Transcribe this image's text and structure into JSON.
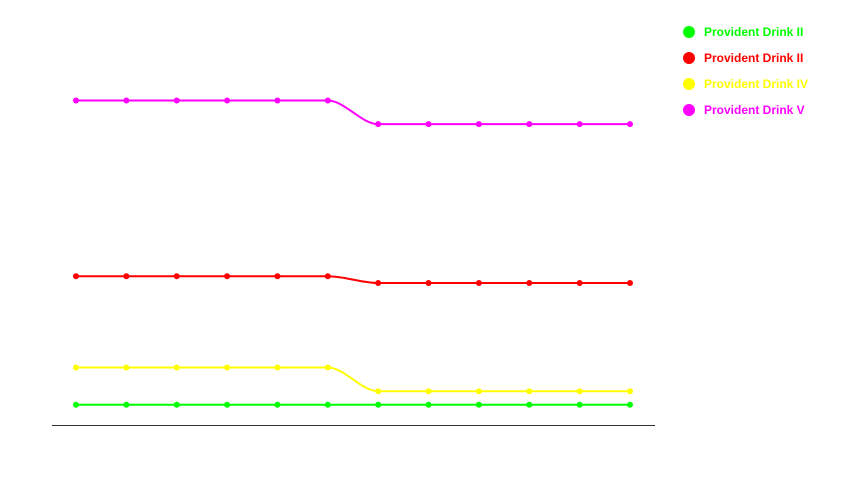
{
  "chart_data": {
    "type": "line",
    "title": "",
    "xlabel": "",
    "ylabel": "",
    "x": [
      1,
      2,
      3,
      4,
      5,
      6,
      7,
      8,
      9,
      10,
      11,
      12
    ],
    "ylim": [
      0,
      100
    ],
    "grid": false,
    "legend_position": "top-right",
    "series": [
      {
        "name": "Provident Drink II",
        "color": "#00ff00",
        "values": [
          6,
          6,
          6,
          6,
          6,
          6,
          6,
          6,
          6,
          6,
          6,
          6
        ]
      },
      {
        "name": "Provident Drink II",
        "color": "#ff0000",
        "values": [
          44,
          44,
          44,
          44,
          44,
          44,
          42,
          42,
          42,
          42,
          42,
          42
        ]
      },
      {
        "name": "Provident Drink IV",
        "color": "#ffff00",
        "values": [
          17,
          17,
          17,
          17,
          17,
          17,
          10,
          10,
          10,
          10,
          10,
          10
        ]
      },
      {
        "name": "Provident Drink V",
        "color": "#ff00ff",
        "values": [
          96,
          96,
          96,
          96,
          96,
          96,
          89,
          89,
          89,
          89,
          89,
          89
        ]
      }
    ]
  }
}
